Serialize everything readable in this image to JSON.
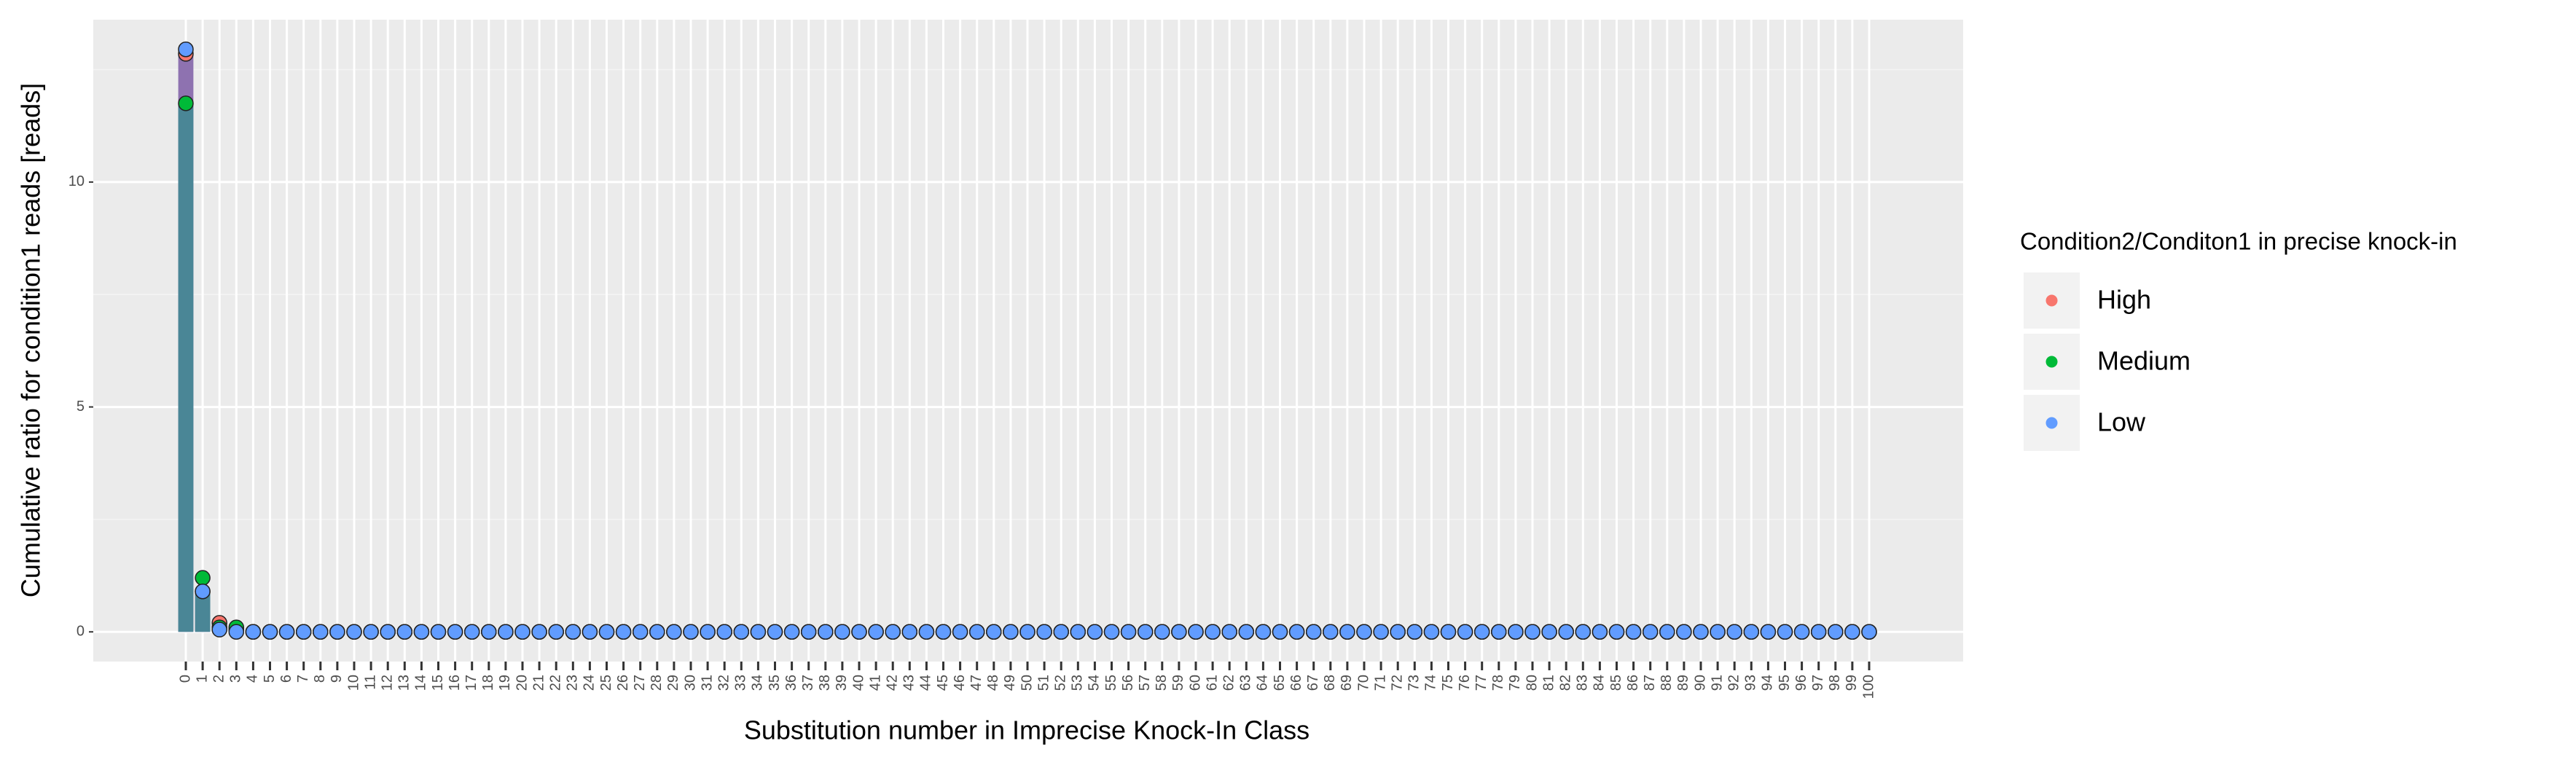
{
  "chart_data": {
    "type": "bar_point",
    "x_label": "Substitution number in Imprecise Knock-In Class",
    "y_label": "Cumulative ratio for condition1 reads [reads]",
    "legend_title": "Condition2/Conditon1 in precise knock-in",
    "legend_position": "right",
    "grid": true,
    "categories": [
      0,
      1,
      2,
      3,
      4,
      5,
      6,
      7,
      8,
      9,
      10,
      11,
      12,
      13,
      14,
      15,
      16,
      17,
      18,
      19,
      20,
      21,
      22,
      23,
      24,
      25,
      26,
      27,
      28,
      29,
      30,
      31,
      32,
      33,
      34,
      35,
      36,
      37,
      38,
      39,
      40,
      41,
      42,
      43,
      44,
      45,
      46,
      47,
      48,
      49,
      50,
      51,
      52,
      53,
      54,
      55,
      56,
      57,
      58,
      59,
      60,
      61,
      62,
      63,
      64,
      65,
      66,
      67,
      68,
      69,
      70,
      71,
      72,
      73,
      74,
      75,
      76,
      77,
      78,
      79,
      80,
      81,
      82,
      83,
      84,
      85,
      86,
      87,
      88,
      89,
      90,
      91,
      92,
      93,
      94,
      95,
      96,
      97,
      98,
      99,
      100
    ],
    "bars": [
      {
        "color": "#8e72b0",
        "values": [
          12.95,
          0.9,
          0.2,
          0.1,
          0,
          0,
          0,
          0,
          0,
          0,
          0,
          0,
          0,
          0,
          0,
          0,
          0,
          0,
          0,
          0,
          0,
          0,
          0,
          0,
          0,
          0,
          0,
          0,
          0,
          0,
          0,
          0,
          0,
          0,
          0,
          0,
          0,
          0,
          0,
          0,
          0,
          0,
          0,
          0,
          0,
          0,
          0,
          0,
          0,
          0,
          0,
          0,
          0,
          0,
          0,
          0,
          0,
          0,
          0,
          0,
          0,
          0,
          0,
          0,
          0,
          0,
          0,
          0,
          0,
          0,
          0,
          0,
          0,
          0,
          0,
          0,
          0,
          0,
          0,
          0,
          0,
          0,
          0,
          0,
          0,
          0,
          0,
          0,
          0,
          0,
          0,
          0,
          0,
          0,
          0,
          0,
          0,
          0,
          0,
          0,
          0
        ]
      },
      {
        "color": "#4a8696",
        "values": [
          11.75,
          0.9,
          0.1,
          0.05,
          0,
          0,
          0,
          0,
          0,
          0,
          0,
          0,
          0,
          0,
          0,
          0,
          0,
          0,
          0,
          0,
          0,
          0,
          0,
          0,
          0,
          0,
          0,
          0,
          0,
          0,
          0,
          0,
          0,
          0,
          0,
          0,
          0,
          0,
          0,
          0,
          0,
          0,
          0,
          0,
          0,
          0,
          0,
          0,
          0,
          0,
          0,
          0,
          0,
          0,
          0,
          0,
          0,
          0,
          0,
          0,
          0,
          0,
          0,
          0,
          0,
          0,
          0,
          0,
          0,
          0,
          0,
          0,
          0,
          0,
          0,
          0,
          0,
          0,
          0,
          0,
          0,
          0,
          0,
          0,
          0,
          0,
          0,
          0,
          0,
          0,
          0,
          0,
          0,
          0,
          0,
          0,
          0,
          0,
          0,
          0,
          0
        ]
      }
    ],
    "series": [
      {
        "name": "High",
        "color": "#F8766D",
        "values": [
          12.85,
          0.9,
          0.2,
          0.05,
          0,
          0,
          0,
          0,
          0,
          0,
          0,
          0,
          0,
          0,
          0,
          0,
          0,
          0,
          0,
          0,
          0,
          0,
          0,
          0,
          0,
          0,
          0,
          0,
          0,
          0,
          0,
          0,
          0,
          0,
          0,
          0,
          0,
          0,
          0,
          0,
          0,
          0,
          0,
          0,
          0,
          0,
          0,
          0,
          0,
          0,
          0,
          0,
          0,
          0,
          0,
          0,
          0,
          0,
          0,
          0,
          0,
          0,
          0,
          0,
          0,
          0,
          0,
          0,
          0,
          0,
          0,
          0,
          0,
          0,
          0,
          0,
          0,
          0,
          0,
          0,
          0,
          0,
          0,
          0,
          0,
          0,
          0,
          0,
          0,
          0,
          0,
          0,
          0,
          0,
          0,
          0,
          0,
          0,
          0,
          0,
          0
        ]
      },
      {
        "name": "Medium",
        "color": "#00BA38",
        "values": [
          11.75,
          1.2,
          0.1,
          0.1,
          0,
          0,
          0,
          0,
          0,
          0,
          0,
          0,
          0,
          0,
          0,
          0,
          0,
          0,
          0,
          0,
          0,
          0,
          0,
          0,
          0,
          0,
          0,
          0,
          0,
          0,
          0,
          0,
          0,
          0,
          0,
          0,
          0,
          0,
          0,
          0,
          0,
          0,
          0,
          0,
          0,
          0,
          0,
          0,
          0,
          0,
          0,
          0,
          0,
          0,
          0,
          0,
          0,
          0,
          0,
          0,
          0,
          0,
          0,
          0,
          0,
          0,
          0,
          0,
          0,
          0,
          0,
          0,
          0,
          0,
          0,
          0,
          0,
          0,
          0,
          0,
          0,
          0,
          0,
          0,
          0,
          0,
          0,
          0,
          0,
          0,
          0,
          0,
          0,
          0,
          0,
          0,
          0,
          0,
          0,
          0,
          0
        ]
      },
      {
        "name": "Low",
        "color": "#619CFF",
        "values": [
          12.95,
          0.9,
          0.05,
          0,
          0,
          0,
          0,
          0,
          0,
          0,
          0,
          0,
          0,
          0,
          0,
          0,
          0,
          0,
          0,
          0,
          0,
          0,
          0,
          0,
          0,
          0,
          0,
          0,
          0,
          0,
          0,
          0,
          0,
          0,
          0,
          0,
          0,
          0,
          0,
          0,
          0,
          0,
          0,
          0,
          0,
          0,
          0,
          0,
          0,
          0,
          0,
          0,
          0,
          0,
          0,
          0,
          0,
          0,
          0,
          0,
          0,
          0,
          0,
          0,
          0,
          0,
          0,
          0,
          0,
          0,
          0,
          0,
          0,
          0,
          0,
          0,
          0,
          0,
          0,
          0,
          0,
          0,
          0,
          0,
          0,
          0,
          0,
          0,
          0,
          0,
          0,
          0,
          0,
          0,
          0,
          0,
          0,
          0,
          0,
          0,
          0
        ]
      }
    ],
    "ylim": [
      -0.66,
      13.61
    ],
    "yticks": [
      0,
      5,
      10
    ]
  }
}
